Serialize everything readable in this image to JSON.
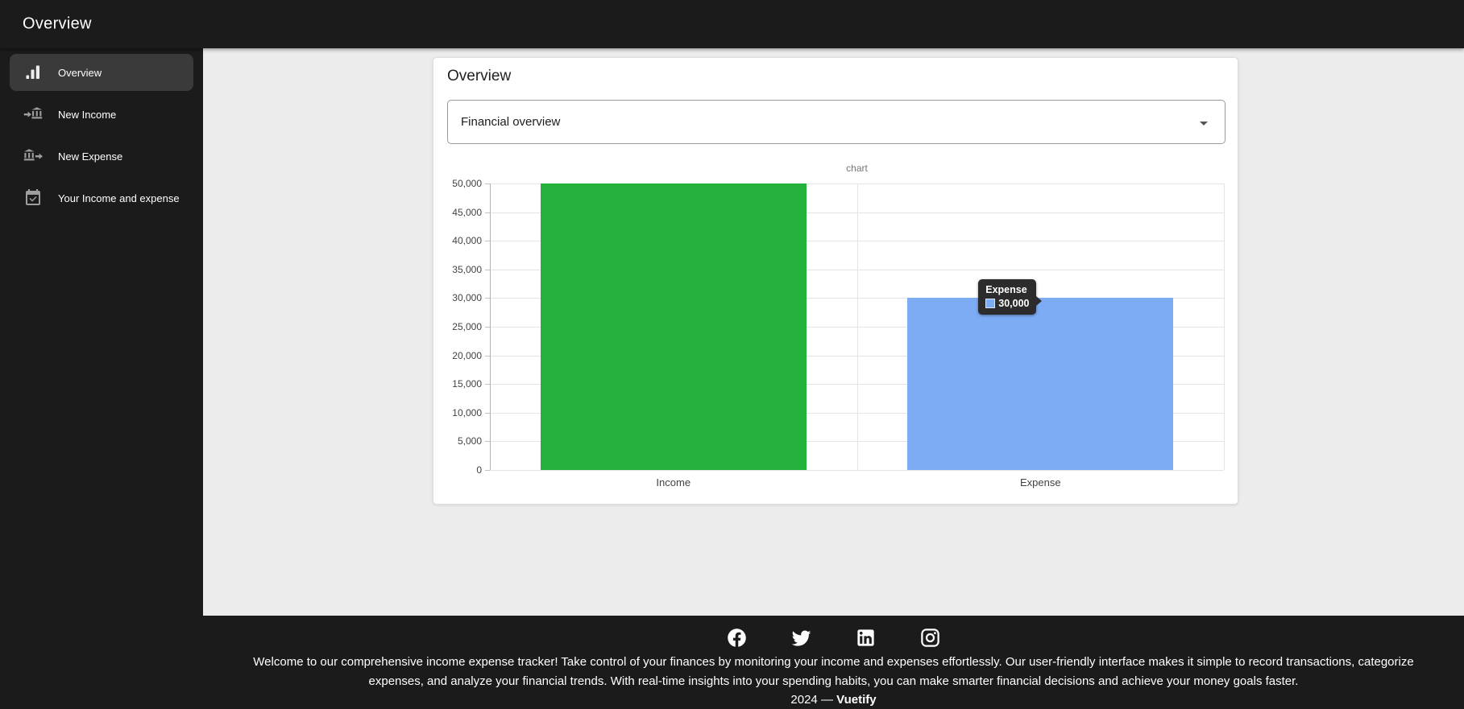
{
  "app": {
    "title": "Overview"
  },
  "sidebar": {
    "items": [
      {
        "label": "Overview",
        "icon": "bar-chart-icon",
        "active": true
      },
      {
        "label": "New Income",
        "icon": "bank-transfer-in-icon",
        "active": false
      },
      {
        "label": "New Expense",
        "icon": "bank-transfer-out-icon",
        "active": false
      },
      {
        "label": "Your Income and expense",
        "icon": "calendar-check-icon",
        "active": false
      }
    ]
  },
  "card": {
    "title": "Overview",
    "select": {
      "value": "Financial overview"
    }
  },
  "chart_data": {
    "type": "bar",
    "title": "chart",
    "categories": [
      "Income",
      "Expense"
    ],
    "values": [
      50000,
      30000
    ],
    "bar_colors": [
      "#24b23d",
      "#7dacf5"
    ],
    "ylim": [
      0,
      50000
    ],
    "ytick_step": 5000,
    "grid": true,
    "legend_position": "none",
    "tooltip": {
      "category": "Expense",
      "value_label": "30,000",
      "swatch_color": "#7dacf5"
    }
  },
  "footer": {
    "social_icons": [
      "facebook-icon",
      "twitter-icon",
      "linkedin-icon",
      "instagram-icon"
    ],
    "description_lines": [
      "Welcome to our comprehensive income expense tracker! Take control of your finances by monitoring your income and expenses effortlessly. Our user-friendly interface makes it simple to record transactions, categorize",
      "expenses, and analyze your financial trends. With real-time insights into your spending habits, you can make smarter financial decisions and achieve your money goals faster."
    ],
    "year_prefix": "2024 —",
    "brand": "Vuetify"
  },
  "colors": {
    "dark_bg": "#1b1b1b",
    "content_bg": "#ececec",
    "active_item_bg": "#3a3a3a",
    "income_green": "#24b23d",
    "expense_blue": "#7dacf5",
    "tooltip_bg": "#2c2c2c"
  }
}
